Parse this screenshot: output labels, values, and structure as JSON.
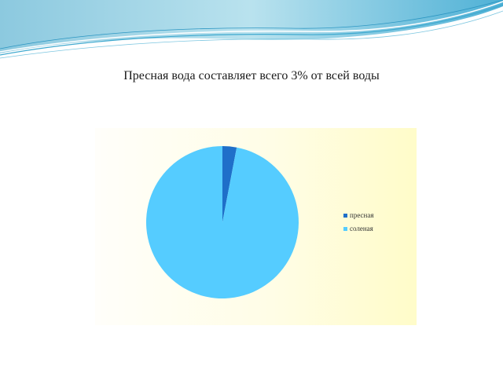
{
  "slide": {
    "title": "Пресная вода составляет всего 3% от всей воды"
  },
  "colors": {
    "background": "#ffffff",
    "wave_dark": "#3fa9cf",
    "wave_light": "#9fd8ea",
    "chart_bg": "#fffde6"
  },
  "chart_data": {
    "type": "pie",
    "title": "",
    "legend_position": "right",
    "slices": [
      {
        "label": "пресная",
        "value": 3,
        "color": "#1f6fc9"
      },
      {
        "label": "соленая",
        "value": 97,
        "color": "#55ccff"
      }
    ]
  }
}
